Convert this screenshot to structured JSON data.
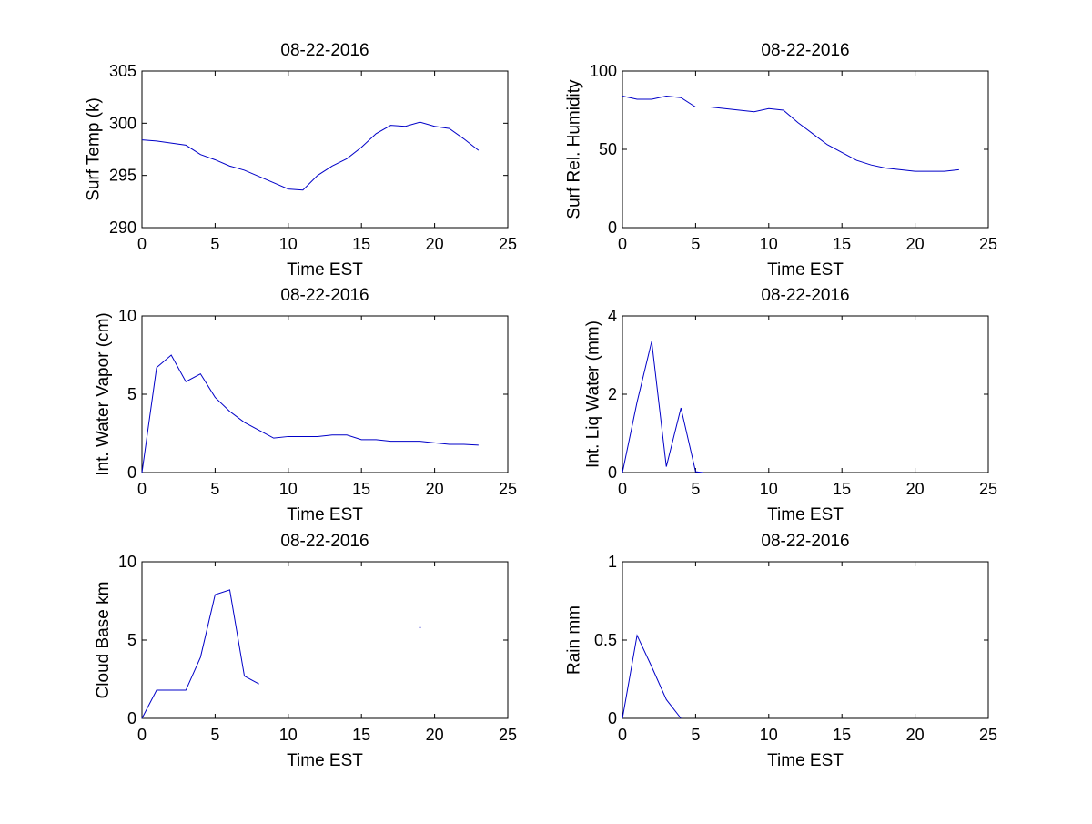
{
  "figure": {
    "background": "#ffffff",
    "line_color": "#0000c8"
  },
  "chart_data": [
    {
      "type": "line",
      "title": "08-22-2016",
      "xlabel": "Time EST",
      "ylabel": "Surf Temp (k)",
      "xlim": [
        0,
        25
      ],
      "ylim": [
        290,
        305
      ],
      "xticks": [
        0,
        5,
        10,
        15,
        20,
        25
      ],
      "yticks": [
        290,
        295,
        300,
        305
      ],
      "grid": false,
      "series": [
        {
          "x": [
            0,
            1,
            2,
            3,
            4,
            5,
            6,
            7,
            8,
            9,
            10,
            11,
            12,
            13,
            14,
            15,
            16,
            17,
            18,
            19,
            20,
            21,
            22,
            23
          ],
          "y": [
            298.4,
            298.3,
            298.1,
            297.9,
            297.0,
            296.5,
            295.9,
            295.5,
            294.9,
            294.3,
            293.7,
            293.6,
            295.0,
            295.9,
            296.6,
            297.7,
            299.0,
            299.8,
            299.7,
            300.1,
            299.7,
            299.5,
            298.5,
            297.4
          ]
        }
      ]
    },
    {
      "type": "line",
      "title": "08-22-2016",
      "xlabel": "Time EST",
      "ylabel": "Surf Rel. Humidity",
      "xlim": [
        0,
        25
      ],
      "ylim": [
        0,
        100
      ],
      "xticks": [
        0,
        5,
        10,
        15,
        20,
        25
      ],
      "yticks": [
        0,
        50,
        100
      ],
      "grid": false,
      "series": [
        {
          "x": [
            0,
            1,
            2,
            3,
            4,
            5,
            6,
            7,
            8,
            9,
            10,
            11,
            12,
            13,
            14,
            15,
            16,
            17,
            18,
            19,
            20,
            21,
            22,
            23
          ],
          "y": [
            84,
            82,
            82,
            84,
            83,
            77,
            77,
            76,
            75,
            74,
            76,
            75,
            67,
            60,
            53,
            48,
            43,
            40,
            38,
            37,
            36,
            36,
            36,
            37
          ]
        }
      ]
    },
    {
      "type": "line",
      "title": "08-22-2016",
      "xlabel": "Time EST",
      "ylabel": "Int. Water Vapor (cm)",
      "xlim": [
        0,
        25
      ],
      "ylim": [
        0,
        10
      ],
      "xticks": [
        0,
        5,
        10,
        15,
        20,
        25
      ],
      "yticks": [
        0,
        5,
        10
      ],
      "grid": false,
      "series": [
        {
          "x": [
            0,
            1,
            2,
            3,
            4,
            5,
            6,
            7,
            8,
            9,
            10,
            11,
            12,
            13,
            14,
            15,
            16,
            17,
            18,
            19,
            20,
            21,
            22,
            23
          ],
          "y": [
            0,
            6.7,
            7.5,
            5.8,
            6.3,
            4.8,
            3.9,
            3.2,
            2.7,
            2.2,
            2.3,
            2.3,
            2.3,
            2.4,
            2.4,
            2.1,
            2.1,
            2.0,
            2.0,
            2.0,
            1.9,
            1.8,
            1.8,
            1.75
          ]
        }
      ]
    },
    {
      "type": "line",
      "title": "08-22-2016",
      "xlabel": "Time EST",
      "ylabel": "Int. Liq Water (mm)",
      "xlim": [
        0,
        25
      ],
      "ylim": [
        0,
        4
      ],
      "xticks": [
        0,
        5,
        10,
        15,
        20,
        25
      ],
      "yticks": [
        0,
        2,
        4
      ],
      "grid": false,
      "series": [
        {
          "x": [
            0,
            1,
            2,
            3,
            4,
            5,
            5.5
          ],
          "y": [
            0,
            1.8,
            3.35,
            0.15,
            1.65,
            0.02,
            0.0
          ]
        }
      ]
    },
    {
      "type": "line",
      "title": "08-22-2016",
      "xlabel": "Time EST",
      "ylabel": "Cloud Base km",
      "xlim": [
        0,
        25
      ],
      "ylim": [
        0,
        10
      ],
      "xticks": [
        0,
        5,
        10,
        15,
        20,
        25
      ],
      "yticks": [
        0,
        5,
        10
      ],
      "grid": false,
      "series": [
        {
          "x": [
            0,
            1,
            2,
            3,
            4,
            5,
            6,
            7,
            8
          ],
          "y": [
            0,
            1.8,
            1.8,
            1.8,
            3.9,
            7.9,
            8.2,
            2.7,
            2.2
          ]
        },
        {
          "x": [
            19
          ],
          "y": [
            5.8
          ],
          "marker": "dot"
        }
      ]
    },
    {
      "type": "line",
      "title": "08-22-2016",
      "xlabel": "Time EST",
      "ylabel": "Rain mm",
      "xlim": [
        0,
        25
      ],
      "ylim": [
        0,
        1
      ],
      "xticks": [
        0,
        5,
        10,
        15,
        20,
        25
      ],
      "yticks": [
        0,
        0.5,
        1
      ],
      "grid": false,
      "series": [
        {
          "x": [
            0,
            1,
            2,
            3,
            4
          ],
          "y": [
            0,
            0.53,
            0.33,
            0.12,
            0.0
          ]
        }
      ]
    }
  ]
}
